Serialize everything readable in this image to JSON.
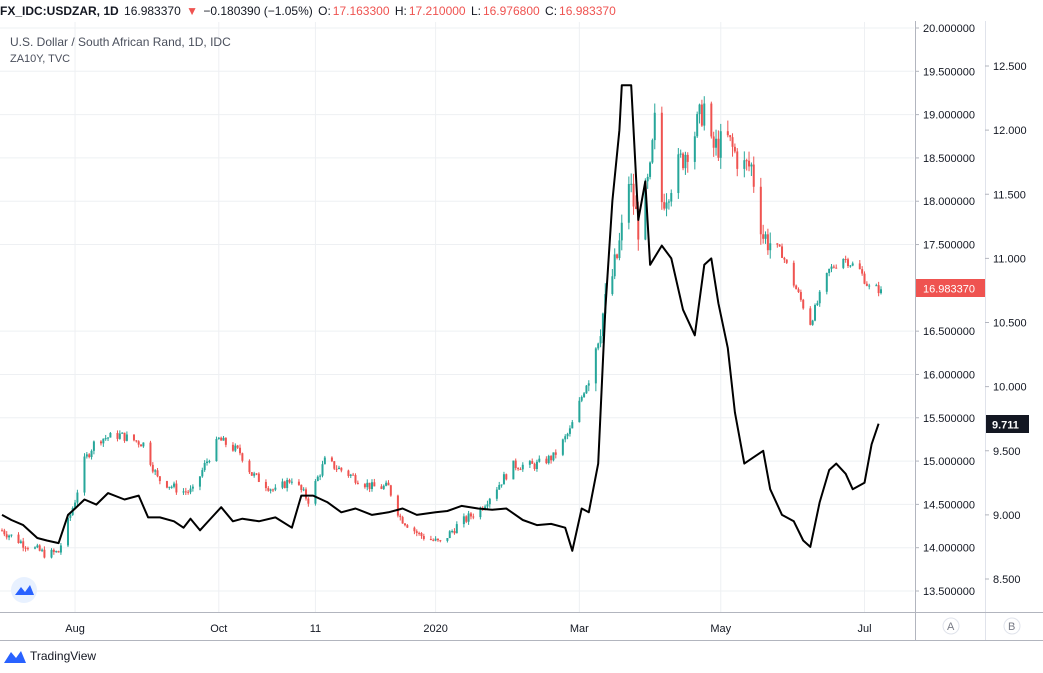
{
  "header": {
    "symbol": "FX_IDC:USDZAR, 1D",
    "last": "16.983370",
    "change": "−0.180390 (−1.05%)",
    "o_label": "O:",
    "o_value": "17.163300",
    "h_label": "H:",
    "h_value": "17.210000",
    "l_label": "L:",
    "l_value": "16.976800",
    "c_label": "C:",
    "c_value": "16.983370"
  },
  "legend": {
    "main_series": "U.S. Dollar / South African Rand, 1D, IDC",
    "overlay_series": "ZA10Y, TVC"
  },
  "footer": {
    "brand": "TradingView"
  },
  "colors": {
    "up": "#26a69a",
    "down": "#ef5350",
    "overlay": "#000000",
    "grid": "#eef0f3",
    "axis": "#b2b5be"
  },
  "chart_data": {
    "type": "candlestick",
    "x_range": [
      "2019-07-01",
      "2020-07-08"
    ],
    "x_ticks": [
      {
        "label": "Aug",
        "date": "2019-08-01"
      },
      {
        "label": "Oct",
        "date": "2019-10-01"
      },
      {
        "label": "11",
        "date": "2019-11-11"
      },
      {
        "label": "2020",
        "date": "2020-01-01"
      },
      {
        "label": "Mar",
        "date": "2020-03-02"
      },
      {
        "label": "May",
        "date": "2020-05-01"
      },
      {
        "label": "Jul",
        "date": "2020-07-01"
      }
    ],
    "axis_A": {
      "name": "A",
      "range": [
        13.2,
        20.05
      ],
      "ticks": [
        "20.000000",
        "19.500000",
        "19.000000",
        "18.500000",
        "18.000000",
        "17.500000",
        "16.500000",
        "16.000000",
        "15.500000",
        "15.000000",
        "14.500000",
        "14.000000",
        "13.500000"
      ],
      "last_value_label": "16.983370",
      "last_value": 16.98337
    },
    "axis_B": {
      "name": "B",
      "range": [
        8.3,
        12.8
      ],
      "ticks": [
        "12.500",
        "12.000",
        "11.500",
        "11.000",
        "10.500",
        "10.000",
        "9.500",
        "9.000",
        "8.500"
      ],
      "last_value_label": "9.711",
      "last_value": 9.711
    },
    "series": [
      {
        "name": "FX_IDC:USDZAR",
        "axis": "A",
        "style": "candles",
        "anchors": [
          [
            "2019-07-01",
            14.2
          ],
          [
            "2019-07-10",
            14.05
          ],
          [
            "2019-07-20",
            13.92
          ],
          [
            "2019-07-25",
            13.95
          ],
          [
            "2019-08-01",
            14.55
          ],
          [
            "2019-08-05",
            15.0
          ],
          [
            "2019-08-10",
            15.25
          ],
          [
            "2019-08-20",
            15.3
          ],
          [
            "2019-08-30",
            15.2
          ],
          [
            "2019-09-05",
            14.8
          ],
          [
            "2019-09-15",
            14.65
          ],
          [
            "2019-09-20",
            14.65
          ],
          [
            "2019-09-25",
            14.95
          ],
          [
            "2019-10-01",
            15.25
          ],
          [
            "2019-10-10",
            15.1
          ],
          [
            "2019-10-15",
            14.85
          ],
          [
            "2019-10-25",
            14.65
          ],
          [
            "2019-11-01",
            14.8
          ],
          [
            "2019-11-08",
            14.55
          ],
          [
            "2019-11-15",
            15.0
          ],
          [
            "2019-11-25",
            14.85
          ],
          [
            "2019-12-05",
            14.7
          ],
          [
            "2019-12-12",
            14.7
          ],
          [
            "2019-12-17",
            14.35
          ],
          [
            "2019-12-25",
            14.15
          ],
          [
            "2020-01-03",
            14.05
          ],
          [
            "2020-01-10",
            14.25
          ],
          [
            "2020-01-20",
            14.45
          ],
          [
            "2020-01-27",
            14.7
          ],
          [
            "2020-02-03",
            14.95
          ],
          [
            "2020-02-12",
            14.95
          ],
          [
            "2020-02-20",
            15.05
          ],
          [
            "2020-02-27",
            15.35
          ],
          [
            "2020-03-05",
            15.9
          ],
          [
            "2020-03-12",
            16.7
          ],
          [
            "2020-03-18",
            17.35
          ],
          [
            "2020-03-20",
            17.65
          ],
          [
            "2020-03-23",
            18.25
          ],
          [
            "2020-03-27",
            17.7
          ],
          [
            "2020-04-01",
            18.3
          ],
          [
            "2020-04-03",
            18.9
          ],
          [
            "2020-04-06",
            18.0
          ],
          [
            "2020-04-13",
            18.4
          ],
          [
            "2020-04-20",
            18.8
          ],
          [
            "2020-04-24",
            19.1
          ],
          [
            "2020-04-27",
            18.6
          ],
          [
            "2020-05-04",
            18.7
          ],
          [
            "2020-05-10",
            18.4
          ],
          [
            "2020-05-14",
            18.4
          ],
          [
            "2020-05-19",
            17.6
          ],
          [
            "2020-05-27",
            17.4
          ],
          [
            "2020-06-01",
            17.05
          ],
          [
            "2020-06-08",
            16.6
          ],
          [
            "2020-06-10",
            16.75
          ],
          [
            "2020-06-16",
            17.2
          ],
          [
            "2020-06-22",
            17.35
          ],
          [
            "2020-06-29",
            17.2
          ],
          [
            "2020-07-03",
            17.0
          ],
          [
            "2020-07-08",
            16.98
          ]
        ]
      },
      {
        "name": "ZA10Y, TVC",
        "axis": "B",
        "style": "line",
        "points": [
          [
            "2019-07-01",
            9.0
          ],
          [
            "2019-07-05",
            8.96
          ],
          [
            "2019-07-10",
            8.92
          ],
          [
            "2019-07-16",
            8.82
          ],
          [
            "2019-07-20",
            8.8
          ],
          [
            "2019-07-25",
            8.78
          ],
          [
            "2019-07-29",
            9.0
          ],
          [
            "2019-08-01",
            9.05
          ],
          [
            "2019-08-05",
            9.12
          ],
          [
            "2019-08-10",
            9.08
          ],
          [
            "2019-08-15",
            9.17
          ],
          [
            "2019-08-22",
            9.12
          ],
          [
            "2019-08-28",
            9.15
          ],
          [
            "2019-09-01",
            8.98
          ],
          [
            "2019-09-06",
            8.98
          ],
          [
            "2019-09-12",
            8.95
          ],
          [
            "2019-09-16",
            8.9
          ],
          [
            "2019-09-19",
            8.97
          ],
          [
            "2019-09-23",
            8.88
          ],
          [
            "2019-09-27",
            8.96
          ],
          [
            "2019-10-02",
            9.06
          ],
          [
            "2019-10-07",
            8.95
          ],
          [
            "2019-10-11",
            8.97
          ],
          [
            "2019-10-18",
            8.95
          ],
          [
            "2019-10-25",
            8.98
          ],
          [
            "2019-11-01",
            8.9
          ],
          [
            "2019-11-05",
            9.15
          ],
          [
            "2019-11-10",
            9.15
          ],
          [
            "2019-11-16",
            9.1
          ],
          [
            "2019-11-22",
            9.02
          ],
          [
            "2019-11-28",
            9.05
          ],
          [
            "2019-12-05",
            9.0
          ],
          [
            "2019-12-12",
            9.02
          ],
          [
            "2019-12-18",
            9.05
          ],
          [
            "2019-12-24",
            9.0
          ],
          [
            "2020-01-01",
            9.02
          ],
          [
            "2020-01-06",
            9.03
          ],
          [
            "2020-01-12",
            9.07
          ],
          [
            "2020-01-19",
            9.05
          ],
          [
            "2020-01-25",
            9.04
          ],
          [
            "2020-01-31",
            9.05
          ],
          [
            "2020-02-07",
            8.96
          ],
          [
            "2020-02-13",
            8.92
          ],
          [
            "2020-02-19",
            8.93
          ],
          [
            "2020-02-25",
            8.9
          ],
          [
            "2020-02-28",
            8.72
          ],
          [
            "2020-03-03",
            9.05
          ],
          [
            "2020-03-06",
            9.02
          ],
          [
            "2020-03-10",
            9.4
          ],
          [
            "2020-03-13",
            10.6
          ],
          [
            "2020-03-16",
            11.45
          ],
          [
            "2020-03-19",
            12.0
          ],
          [
            "2020-03-20",
            12.35
          ],
          [
            "2020-03-24",
            12.35
          ],
          [
            "2020-03-27",
            11.3
          ],
          [
            "2020-03-30",
            11.6
          ],
          [
            "2020-04-01",
            10.95
          ],
          [
            "2020-04-06",
            11.1
          ],
          [
            "2020-04-10",
            11.0
          ],
          [
            "2020-04-15",
            10.6
          ],
          [
            "2020-04-20",
            10.4
          ],
          [
            "2020-04-24",
            10.95
          ],
          [
            "2020-04-27",
            11.0
          ],
          [
            "2020-04-30",
            10.65
          ],
          [
            "2020-05-04",
            10.3
          ],
          [
            "2020-05-07",
            9.8
          ],
          [
            "2020-05-11",
            9.4
          ],
          [
            "2020-05-15",
            9.45
          ],
          [
            "2020-05-19",
            9.5
          ],
          [
            "2020-05-22",
            9.2
          ],
          [
            "2020-05-27",
            9.0
          ],
          [
            "2020-06-01",
            8.95
          ],
          [
            "2020-06-05",
            8.8
          ],
          [
            "2020-06-08",
            8.75
          ],
          [
            "2020-06-12",
            9.1
          ],
          [
            "2020-06-16",
            9.35
          ],
          [
            "2020-06-19",
            9.4
          ],
          [
            "2020-06-23",
            9.32
          ],
          [
            "2020-06-26",
            9.2
          ],
          [
            "2020-07-01",
            9.25
          ],
          [
            "2020-07-04",
            9.55
          ],
          [
            "2020-07-07",
            9.711
          ]
        ]
      }
    ]
  }
}
